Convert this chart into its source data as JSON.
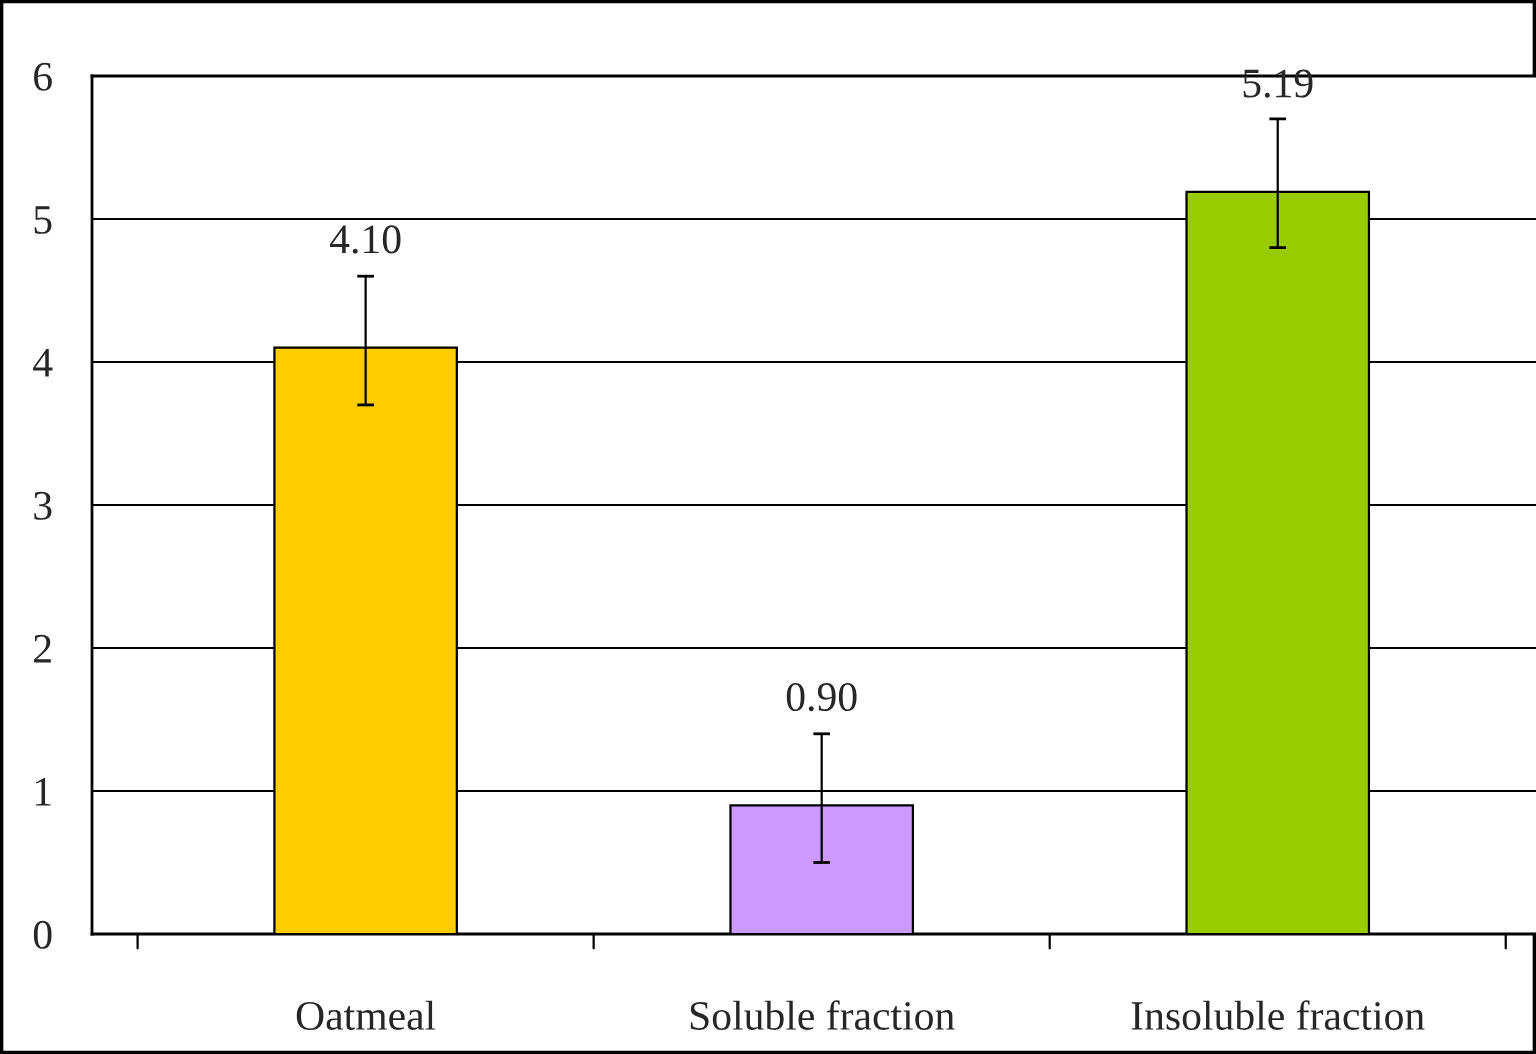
{
  "chart_data": {
    "type": "bar",
    "categories": [
      "Oatmeal",
      "Soluble fraction",
      "Insoluble fraction"
    ],
    "values": [
      4.1,
      0.9,
      5.19
    ],
    "colors": [
      "#ffcc00",
      "#cc99ff",
      "#99cc00"
    ],
    "errors": [
      [
        3.7,
        4.6
      ],
      [
        0.5,
        1.4
      ],
      [
        4.8,
        5.7
      ]
    ],
    "value_labels": [
      "4.10",
      "0.90",
      "5.19"
    ],
    "ylim": [
      0,
      6
    ],
    "yticks": [
      0,
      1,
      2,
      3,
      4,
      5,
      6
    ],
    "grid": "y",
    "legend": false
  }
}
